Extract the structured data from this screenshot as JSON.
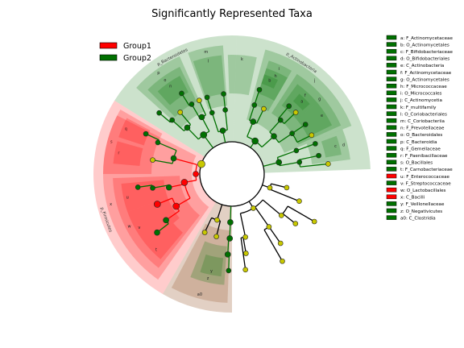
{
  "title": "Significantly Represented Taxa",
  "legend": {
    "groups": [
      {
        "name": "Group1",
        "color": "#ff0000"
      },
      {
        "name": "Group2",
        "color": "#007000"
      }
    ],
    "taxa": [
      {
        "text": "a: F_Actinomycetaceae",
        "group": 2
      },
      {
        "text": "b: O_Actinomycetales",
        "group": 2
      },
      {
        "text": "c: F_Bifidobacteriaceae",
        "group": 2
      },
      {
        "text": "d: O_Bifidobacteriales",
        "group": 2
      },
      {
        "text": "e: C_Actinobacteria",
        "group": 2
      },
      {
        "text": "f: F_Actinomycetaceae",
        "group": 2
      },
      {
        "text": "g: O_Actinomycetales",
        "group": 2
      },
      {
        "text": "h: F_Micrococcaceae",
        "group": 2
      },
      {
        "text": "i: O_Micrococcales",
        "group": 2
      },
      {
        "text": "j: C_Actinomycetia",
        "group": 2
      },
      {
        "text": "k: F_multifamily",
        "group": 2
      },
      {
        "text": "l: O_Coriobacteriales",
        "group": 2
      },
      {
        "text": "m: C_Coriobacteriia",
        "group": 2
      },
      {
        "text": "n: F_Prevotellaceae",
        "group": 2
      },
      {
        "text": "o: O_Bacteroidales",
        "group": 2
      },
      {
        "text": "p: C_Bacteroidia",
        "group": 2
      },
      {
        "text": "q: F_Gemellaceae",
        "group": 2
      },
      {
        "text": "r: F_Paenibacillaceae",
        "group": 2
      },
      {
        "text": "s: O_Bacillales",
        "group": 2
      },
      {
        "text": "t: F_Carnobacteriaceae",
        "group": 2
      },
      {
        "text": "u: F_Enterococcaceae",
        "group": 1
      },
      {
        "text": "v: F_Streptococcaceae",
        "group": 2
      },
      {
        "text": "w: O_Lactobacillales",
        "group": 1
      },
      {
        "text": "x: C_Bacilli",
        "group": 1
      },
      {
        "text": "y: F_Veillonellaceae",
        "group": 2
      },
      {
        "text": "z: O_Negativicutes",
        "group": 2
      },
      {
        "text": "a0: C_Clostridia",
        "group": 2
      }
    ]
  },
  "clade_labels": {
    "bacteroidetes": "p_Bacteroidetes",
    "actinobacteria": "p_Actinobacteria",
    "firmicutes": "p_Firmicutes"
  },
  "sector_letters": [
    "p",
    "o",
    "n",
    "m",
    "l",
    "k",
    "j",
    "i",
    "h",
    "g",
    "f",
    "e",
    "d",
    "c",
    "b",
    "a",
    "s",
    "r",
    "q",
    "x",
    "w",
    "v",
    "u",
    "t",
    "a0",
    "z",
    "y"
  ]
}
